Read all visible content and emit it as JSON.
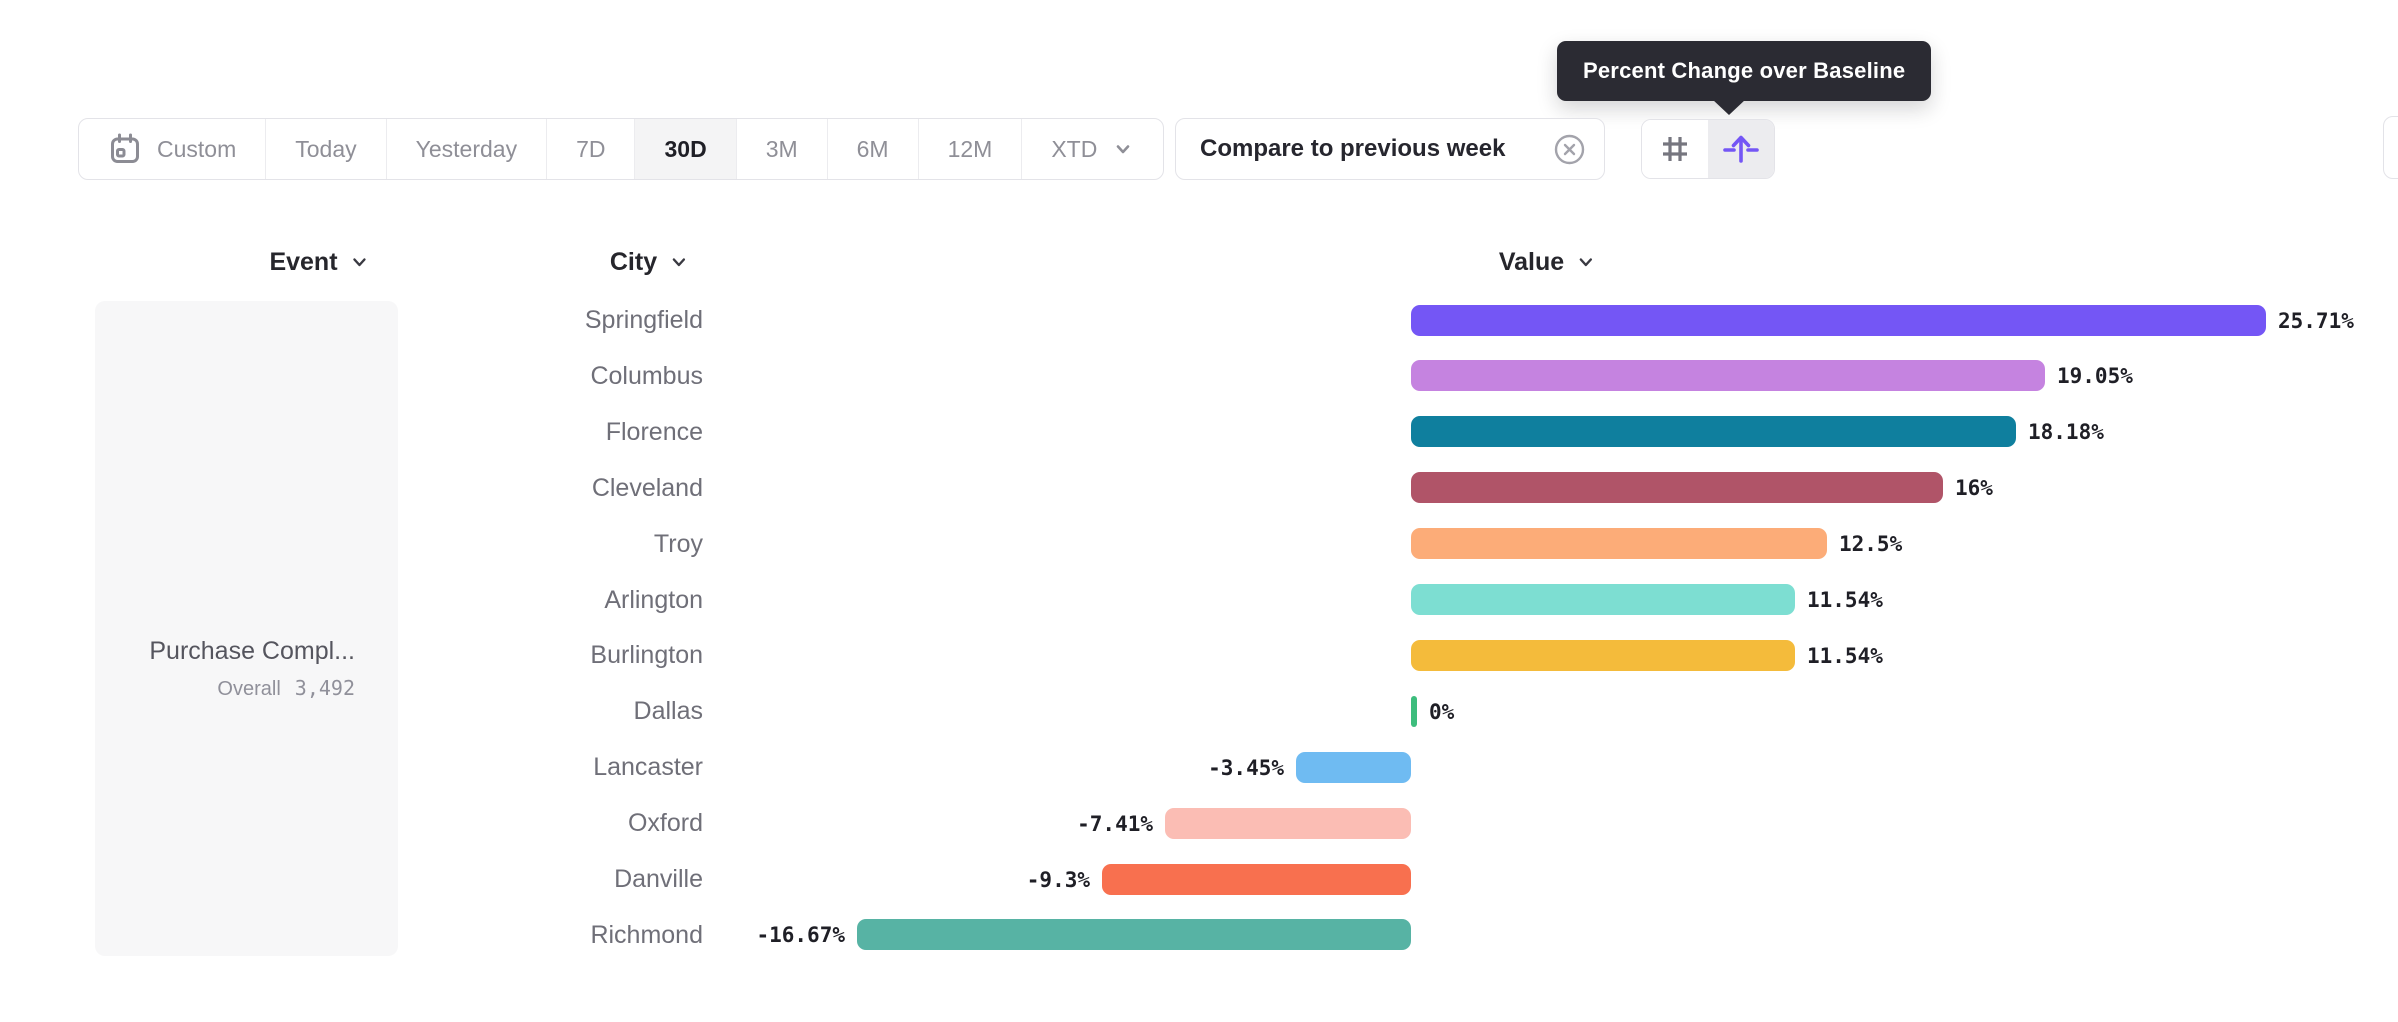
{
  "tooltip": {
    "text": "Percent Change over Baseline"
  },
  "toolbar": {
    "date_ranges": [
      {
        "label": "Custom",
        "icon": "calendar-icon",
        "selected": false
      },
      {
        "label": "Today",
        "selected": false
      },
      {
        "label": "Yesterday",
        "selected": false
      },
      {
        "label": "7D",
        "selected": false
      },
      {
        "label": "30D",
        "selected": true
      },
      {
        "label": "3M",
        "selected": false
      },
      {
        "label": "6M",
        "selected": false
      },
      {
        "label": "12M",
        "selected": false
      },
      {
        "label": "XTD",
        "icon": "chevron-down-icon",
        "selected": false
      }
    ],
    "compare_chip": {
      "label": "Compare to previous week",
      "icon": "close-circle-icon"
    },
    "view_toggle": [
      {
        "icon": "grid-hash-icon",
        "selected": false
      },
      {
        "icon": "baseline-arrow-icon",
        "selected": true,
        "accent": "#7456F5"
      }
    ]
  },
  "columns": [
    {
      "label": "Event"
    },
    {
      "label": "City"
    },
    {
      "label": "Value"
    }
  ],
  "event_panel": {
    "title": "Purchase Compl...",
    "overall_label": "Overall",
    "overall_value": "3,492"
  },
  "chart_data": {
    "type": "bar",
    "orientation": "horizontal",
    "unit": "percent_change_over_baseline",
    "title": "",
    "xlabel": "Value",
    "ylabel": "City",
    "xlim": [
      -16.67,
      25.71
    ],
    "baseline": 0,
    "grid": false,
    "value_labels": true,
    "categories": [
      "Springfield",
      "Columbus",
      "Florence",
      "Cleveland",
      "Troy",
      "Arlington",
      "Burlington",
      "Dallas",
      "Lancaster",
      "Oxford",
      "Danville",
      "Richmond"
    ],
    "values": [
      25.71,
      19.05,
      18.18,
      16,
      12.5,
      11.54,
      11.54,
      0,
      -3.45,
      -7.41,
      -9.3,
      -16.67
    ],
    "labels": [
      "25.71%",
      "19.05%",
      "18.18%",
      "16%",
      "12.5%",
      "11.54%",
      "11.54%",
      "0%",
      "-3.45%",
      "-7.41%",
      "-9.3%",
      "-16.67%"
    ],
    "colors": [
      "#7456F5",
      "#C583E0",
      "#0F7F9E",
      "#B05468",
      "#FCAC78",
      "#7DDED2",
      "#F4BB3B",
      "#3DBD7D",
      "#6FBBF2",
      "#FBBDB4",
      "#F8704F",
      "#57B3A4"
    ]
  }
}
